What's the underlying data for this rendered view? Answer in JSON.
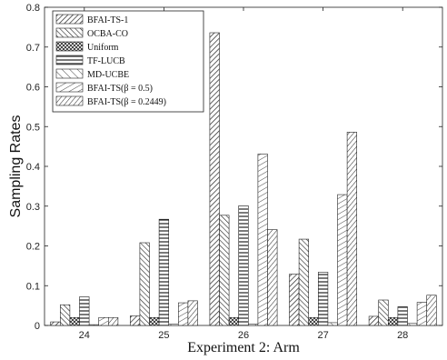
{
  "chart_data": {
    "type": "bar",
    "xlabel": "Experiment 2: Arm",
    "ylabel": "Sampling Rates",
    "ylim": [
      0,
      0.8
    ],
    "yticks": [
      0,
      0.1,
      0.2,
      0.3,
      0.4,
      0.5,
      0.6,
      0.7,
      0.8
    ],
    "yticks_labels": [
      "0",
      "0.1",
      "0.2",
      "0.3",
      "0.4",
      "0.5",
      "0.6",
      "0.7",
      "0.8"
    ],
    "categories": [
      "24",
      "25",
      "26",
      "27",
      "28"
    ],
    "legend_position": "top-left",
    "series": [
      {
        "name": "BFAI-TS-1",
        "pattern": "diag-right-dense",
        "values": [
          0.009,
          0.024,
          0.736,
          0.129,
          0.023
        ]
      },
      {
        "name": "OCBA-CO",
        "pattern": "diag-left-dense",
        "values": [
          0.052,
          0.208,
          0.277,
          0.217,
          0.064
        ]
      },
      {
        "name": "Uniform",
        "pattern": "crosshatch",
        "values": [
          0.02,
          0.02,
          0.02,
          0.02,
          0.02
        ]
      },
      {
        "name": "TF-LUCB",
        "pattern": "horizontal",
        "values": [
          0.072,
          0.267,
          0.301,
          0.134,
          0.047
        ]
      },
      {
        "name": "MD-UCBE",
        "pattern": "diag-left-sparse",
        "values": [
          0.002,
          0.003,
          0.003,
          0.007,
          0.005
        ]
      },
      {
        "name": "BFAI-TS(β = 0.5)",
        "pattern": "diag-right-sparse",
        "values": [
          0.02,
          0.057,
          0.431,
          0.329,
          0.058
        ]
      },
      {
        "name": "BFAI-TS(β = 0.2449)",
        "pattern": "diag-right-medium",
        "values": [
          0.02,
          0.062,
          0.241,
          0.486,
          0.076
        ]
      }
    ]
  }
}
